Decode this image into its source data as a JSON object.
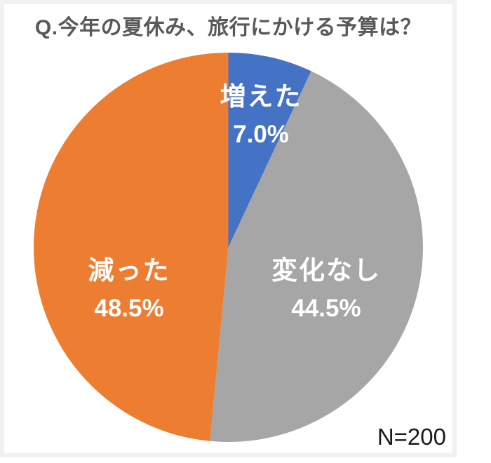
{
  "page": {
    "background": "#ffffff",
    "card_border_color": "#f1f1f1"
  },
  "chart_data": {
    "type": "pie",
    "title": "Q.今年の夏休み、旅行にかける予算は？",
    "title_color": "#595959",
    "slices": [
      {
        "label": "増えた",
        "value": 7.0,
        "display": "7.0%",
        "color": "#4472C4"
      },
      {
        "label": "変化なし",
        "value": 44.5,
        "display": "44.5%",
        "color": "#A6A6A6"
      },
      {
        "label": "減った",
        "value": 48.5,
        "display": "48.5%",
        "color": "#ED7D31"
      }
    ],
    "start_angle_deg": -90,
    "direction": "clockwise",
    "slice_label_color": "#ffffff",
    "legend_position": "none",
    "sample_note": "N=200",
    "note_color": "#1a1a1a"
  }
}
